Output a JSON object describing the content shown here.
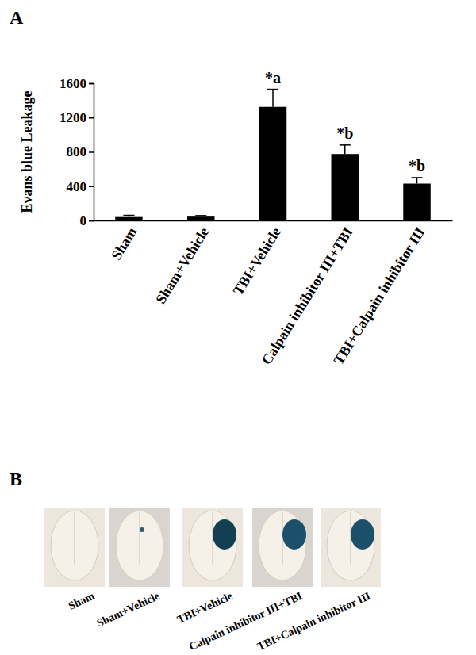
{
  "chart_data": {
    "type": "bar",
    "y_label": "Evans blue Leakage",
    "categories": [
      "Sham",
      "Sham+Vehicle",
      "TBI+Vehicle",
      "Calpain inhibitor III+TBI",
      "TBI+Calpain inhibitor III"
    ],
    "values": [
      40,
      45,
      1325,
      775,
      430
    ],
    "errors": [
      20,
      12,
      205,
      105,
      70
    ],
    "color": "#000000",
    "ylim": [
      0,
      1600
    ],
    "yticks": [
      0,
      400,
      800,
      1200,
      1600
    ],
    "annotations": [
      {
        "category": "TBI+Vehicle",
        "text": "*a"
      },
      {
        "category": "Calpain inhibitor III+TBI",
        "text": "*b"
      },
      {
        "category": "TBI+Calpain inhibitor III",
        "text": "*b"
      }
    ]
  },
  "figure": {
    "panels": [
      "A",
      "B"
    ],
    "photo_labels": [
      "Sham",
      "Sham+Vehicle",
      "TBI+Vehicle",
      "Calpain inhibitor III+TBI",
      "TBI+Calpain inhibitor III"
    ]
  }
}
